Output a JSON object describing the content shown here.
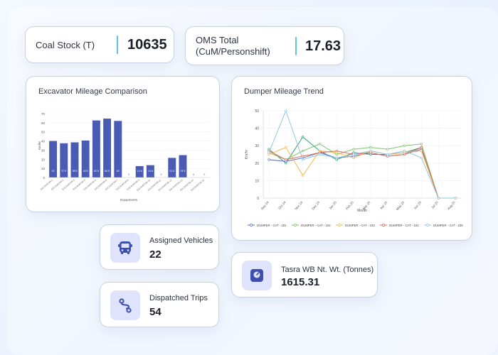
{
  "kpis": {
    "coal_stock": {
      "label": "Coal Stock (T)",
      "value": "10635"
    },
    "oms_total": {
      "label_line1": "OMS Total",
      "label_line2": "(CuM/Personshift)",
      "value": "17.63"
    }
  },
  "excavator_chart": {
    "title": "Excavator Mileage Comparison",
    "chart_data": {
      "type": "bar",
      "xlabel": "Equipments",
      "ylabel": "Km/hr",
      "ylim": [
        0,
        70
      ],
      "yticks": [
        0,
        10,
        20,
        30,
        40,
        50,
        60,
        70
      ],
      "categories": [
        "EXCAVATOR-1",
        "EXCAVATOR-2",
        "EXCAVATOR-3",
        "EXCAVATOR-4",
        "EXCAVATOR-5",
        "EXCAVATOR-6",
        "EXCAVATOR-7",
        "EXCAVATOR-8",
        "EXCAVATOR-9",
        "EXCAVATOR-10",
        "EXCAVATOR-11",
        "EXCAVATOR-12",
        "EXCAVATOR-13",
        "EXCAVATOR-14",
        "EXCAVATOR-15"
      ],
      "values": [
        40,
        37.5,
        38.5,
        40.5,
        62.5,
        64.5,
        62,
        0,
        12.5,
        13.5,
        0,
        21.5,
        24.5,
        0,
        0
      ],
      "color": "#4a5bb3"
    }
  },
  "dumper_chart": {
    "title": "Dumper Mileage Trend",
    "chart_data": {
      "type": "line",
      "xlabel": "Month",
      "ylabel": "Km/hr",
      "ylim": [
        0,
        50
      ],
      "yticks": [
        0,
        10,
        20,
        30,
        40,
        50
      ],
      "categories": [
        "Sep 24",
        "Oct 24",
        "Nov 24",
        "Dec 24",
        "Jan 25",
        "Feb 25",
        "Mar 25",
        "Apr 25",
        "May 25",
        "Jun 25",
        "Jul 25",
        "Aug 25"
      ],
      "series": [
        {
          "name": "DUMPER - CAT - 101",
          "color": "#5a6fd8",
          "values": [
            22,
            21,
            23,
            26,
            23,
            24,
            26,
            24,
            25,
            28,
            0,
            0
          ]
        },
        {
          "name": "DUMPER - CAT - 102",
          "color": "#7cc46a",
          "values": [
            26,
            22,
            27,
            31,
            25,
            28,
            29,
            28,
            30,
            31,
            0,
            0
          ]
        },
        {
          "name": "DUMPER - CAT - 103",
          "color": "#f0b955",
          "values": [
            25,
            29,
            13,
            27,
            26,
            23,
            27,
            25,
            26,
            27,
            0,
            0
          ]
        },
        {
          "name": "DUMPER - CAT - 104",
          "color": "#e06a5a",
          "values": [
            27,
            22,
            24,
            26,
            27,
            25,
            26,
            24,
            25,
            29,
            0,
            0
          ]
        },
        {
          "name": "DUMPER - CAT - 105",
          "color": "#8fc8dc",
          "values": [
            26,
            50,
            22,
            25,
            23,
            25,
            27,
            25,
            27,
            23,
            0,
            0
          ]
        }
      ],
      "extra_series_color": "#2f9e6e",
      "extra_values": [
        28,
        20,
        35,
        27,
        22,
        26,
        25,
        25,
        26,
        29,
        0,
        0
      ],
      "legend_position": "bottom"
    }
  },
  "assigned_vehicles": {
    "label": "Assigned Vehicles",
    "value": "22",
    "icon": "bus-icon"
  },
  "dispatched_trips": {
    "label": "Dispatched Trips",
    "value": "54",
    "icon": "route-icon"
  },
  "tasra": {
    "label": "Tasra WB Nt. Wt. (Tonnes)",
    "value": "1615.31",
    "icon": "scale-icon"
  },
  "colors": {
    "accent": "#5ec6d6",
    "icon_bg": "#dfe3fb",
    "icon_fg": "#3d4fb0"
  }
}
